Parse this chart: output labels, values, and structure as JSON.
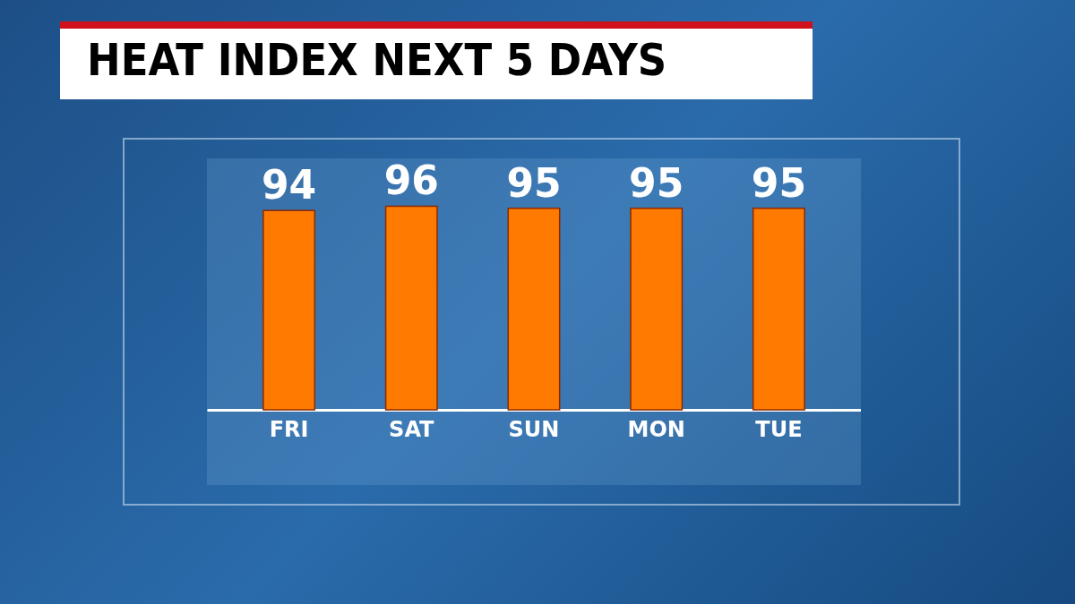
{
  "chart_data": {
    "type": "bar",
    "title": "HEAT INDEX NEXT 5 DAYS",
    "categories": [
      "FRI",
      "SAT",
      "SUN",
      "MON",
      "TUE"
    ],
    "values": [
      94,
      96,
      95,
      95,
      95
    ],
    "color": "#ff7a00",
    "data_labels": true
  }
}
